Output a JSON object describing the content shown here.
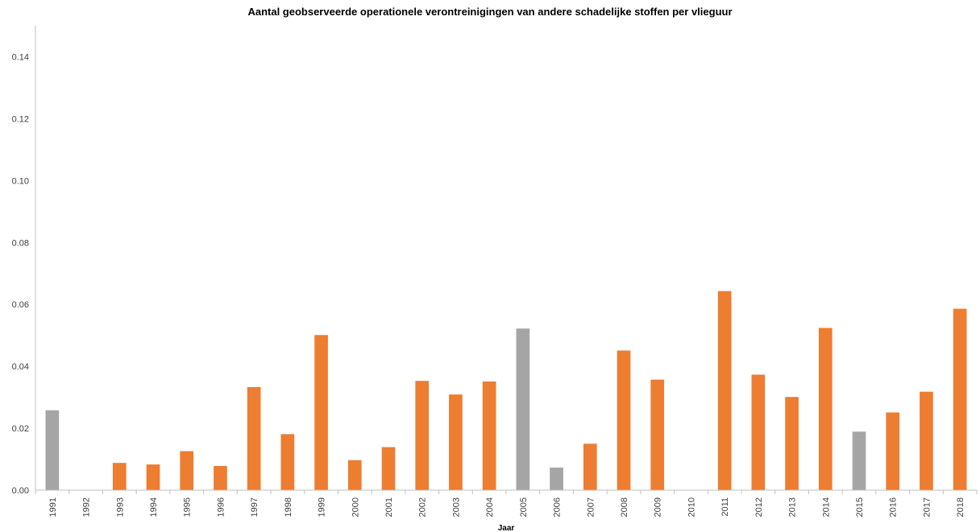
{
  "chart_data": {
    "type": "bar",
    "title": "Aantal geobserveerde operationele verontreinigingen van andere schadelijke stoffen per vlieguur",
    "xlabel": "Jaar",
    "ylabel": "",
    "ylim": [
      0,
      0.15
    ],
    "yticks": [
      "0.00",
      "0.02",
      "0.04",
      "0.06",
      "0.08",
      "0.10",
      "0.12",
      "0.14"
    ],
    "grid": false,
    "legend": "none",
    "colors": {
      "default": "#ED7D31",
      "highlight": "#A5A5A5",
      "axis": "#BFBFBF"
    },
    "categories": [
      "1991",
      "1992",
      "1993",
      "1994",
      "1995",
      "1996",
      "1997",
      "1998",
      "1999",
      "2000",
      "2001",
      "2002",
      "2003",
      "2004",
      "2005",
      "2006",
      "2007",
      "2008",
      "2009",
      "2010",
      "2011",
      "2012",
      "2013",
      "2014",
      "2015",
      "2016",
      "2017",
      "2018"
    ],
    "values": [
      0.0258,
      0,
      0.0088,
      0.0083,
      0.0126,
      0.0078,
      0.0333,
      0.0181,
      0.0501,
      0.0097,
      0.0139,
      0.0353,
      0.0309,
      0.0351,
      0.0522,
      0.0073,
      0.015,
      0.0451,
      0.0357,
      0,
      0.0643,
      0.0373,
      0.0301,
      0.0524,
      0.0189,
      0.0251,
      0.0318,
      0.0586
    ],
    "bar_colors": [
      "#A5A5A5",
      "#ED7D31",
      "#ED7D31",
      "#ED7D31",
      "#ED7D31",
      "#ED7D31",
      "#ED7D31",
      "#ED7D31",
      "#ED7D31",
      "#ED7D31",
      "#ED7D31",
      "#ED7D31",
      "#ED7D31",
      "#ED7D31",
      "#A5A5A5",
      "#A5A5A5",
      "#ED7D31",
      "#ED7D31",
      "#ED7D31",
      "#ED7D31",
      "#ED7D31",
      "#ED7D31",
      "#ED7D31",
      "#ED7D31",
      "#A5A5A5",
      "#ED7D31",
      "#ED7D31",
      "#ED7D31"
    ]
  }
}
